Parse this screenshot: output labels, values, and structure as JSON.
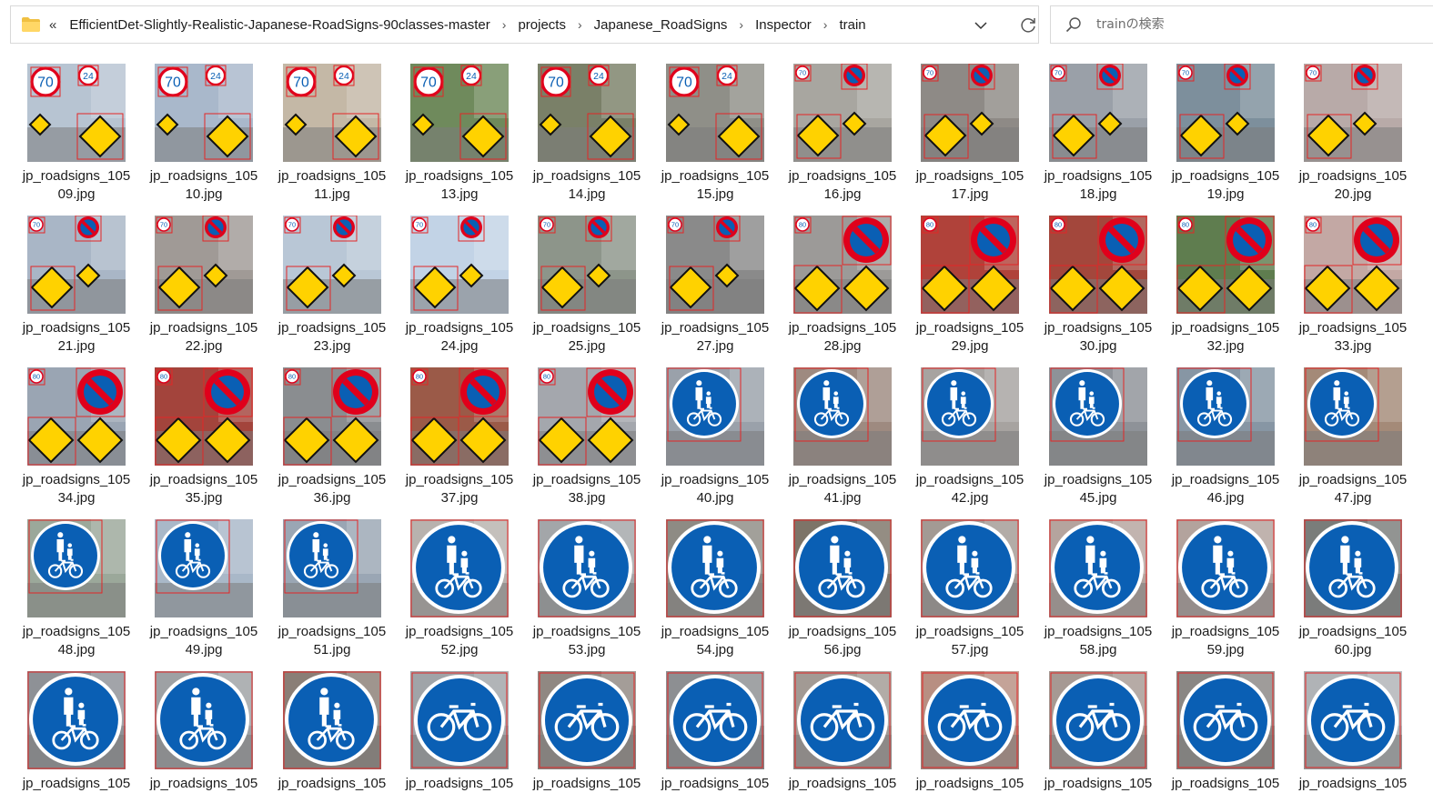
{
  "address_bar": {
    "overflow_symbol": "«",
    "breadcrumbs": [
      "EfficientDet-Slightly-Realistic-Japanese-RoadSigns-90classes-master",
      "projects",
      "Japanese_RoadSigns",
      "Inspector",
      "train"
    ]
  },
  "search": {
    "placeholder": "trainの検索"
  },
  "colors": {
    "sign_blue": "#0a5fb4",
    "sign_red": "#e0001b",
    "sign_yellow": "#ffd200",
    "bbox": "#e32626"
  },
  "files": [
    {
      "line1": "jp_roadsigns_105",
      "line2": "09.jpg",
      "thumb": "speed-deer-icon",
      "bg": "#b7c4d2"
    },
    {
      "line1": "jp_roadsigns_105",
      "line2": "10.jpg",
      "thumb": "speed-deer-icon",
      "bg": "#a9b8cb"
    },
    {
      "line1": "jp_roadsigns_105",
      "line2": "11.jpg",
      "thumb": "speed-deer-icon",
      "bg": "#c4b8a6"
    },
    {
      "line1": "jp_roadsigns_105",
      "line2": "13.jpg",
      "thumb": "speed-deer-icon",
      "bg": "#6f8a5c"
    },
    {
      "line1": "jp_roadsigns_105",
      "line2": "14.jpg",
      "thumb": "speed-deer-icon",
      "bg": "#7a8068"
    },
    {
      "line1": "jp_roadsigns_105",
      "line2": "15.jpg",
      "thumb": "speed-deer-icon",
      "bg": "#8f8f88"
    },
    {
      "line1": "jp_roadsigns_105",
      "line2": "16.jpg",
      "thumb": "school-y-icon",
      "bg": "#a8a6a0"
    },
    {
      "line1": "jp_roadsigns_105",
      "line2": "17.jpg",
      "thumb": "school-y-icon",
      "bg": "#8e8a86"
    },
    {
      "line1": "jp_roadsigns_105",
      "line2": "18.jpg",
      "thumb": "school-y-icon",
      "bg": "#9aa0a8"
    },
    {
      "line1": "jp_roadsigns_105",
      "line2": "19.jpg",
      "thumb": "school-y-icon",
      "bg": "#7d8f9c"
    },
    {
      "line1": "jp_roadsigns_105",
      "line2": "20.jpg",
      "thumb": "school-y-icon",
      "bg": "#b8aaa8"
    },
    {
      "line1": "jp_roadsigns_105",
      "line2": "21.jpg",
      "thumb": "school-y-icon",
      "bg": "#a9b6c6"
    },
    {
      "line1": "jp_roadsigns_105",
      "line2": "22.jpg",
      "thumb": "school-y-icon",
      "bg": "#a09a96"
    },
    {
      "line1": "jp_roadsigns_105",
      "line2": "23.jpg",
      "thumb": "school-y-icon",
      "bg": "#b9c7d6"
    },
    {
      "line1": "jp_roadsigns_105",
      "line2": "24.jpg",
      "thumb": "school-y-icon",
      "bg": "#c2d3e6"
    },
    {
      "line1": "jp_roadsigns_105",
      "line2": "25.jpg",
      "thumb": "school-y-icon",
      "bg": "#8d958a"
    },
    {
      "line1": "jp_roadsigns_105",
      "line2": "27.jpg",
      "thumb": "school-y-icon",
      "bg": "#8a8a8a"
    },
    {
      "line1": "jp_roadsigns_105",
      "line2": "28.jpg",
      "thumb": "curve-y-icon",
      "bg": "#9c9a98"
    },
    {
      "line1": "jp_roadsigns_105",
      "line2": "29.jpg",
      "thumb": "curve-y-icon",
      "bg": "#b0423a"
    },
    {
      "line1": "jp_roadsigns_105",
      "line2": "30.jpg",
      "thumb": "curve-y-icon",
      "bg": "#a3473c"
    },
    {
      "line1": "jp_roadsigns_105",
      "line2": "32.jpg",
      "thumb": "curve-y-icon",
      "bg": "#5f7d4f"
    },
    {
      "line1": "jp_roadsigns_105",
      "line2": "33.jpg",
      "thumb": "curve-y-icon",
      "bg": "#c3a8a4"
    },
    {
      "line1": "jp_roadsigns_105",
      "line2": "34.jpg",
      "thumb": "curve-y-icon",
      "bg": "#9aa5b3"
    },
    {
      "line1": "jp_roadsigns_105",
      "line2": "35.jpg",
      "thumb": "curve-y-icon",
      "bg": "#a3443c"
    },
    {
      "line1": "jp_roadsigns_105",
      "line2": "36.jpg",
      "thumb": "curve-y-icon",
      "bg": "#8a8d90"
    },
    {
      "line1": "jp_roadsigns_105",
      "line2": "37.jpg",
      "thumb": "curve-y-icon",
      "bg": "#9b5a48"
    },
    {
      "line1": "jp_roadsigns_105",
      "line2": "38.jpg",
      "thumb": "curve-y-icon",
      "bg": "#a4a7ad"
    },
    {
      "line1": "jp_roadsigns_105",
      "line2": "40.jpg",
      "thumb": "pedbike-small-icon",
      "bg": "#9aa1aa"
    },
    {
      "line1": "jp_roadsigns_105",
      "line2": "41.jpg",
      "thumb": "pedbike-small-icon",
      "bg": "#9e8a80"
    },
    {
      "line1": "jp_roadsigns_105",
      "line2": "42.jpg",
      "thumb": "pedbike-small-icon",
      "bg": "#a7a3a0"
    },
    {
      "line1": "jp_roadsigns_105",
      "line2": "45.jpg",
      "thumb": "pedbike-small-icon",
      "bg": "#8e9298"
    },
    {
      "line1": "jp_roadsigns_105",
      "line2": "46.jpg",
      "thumb": "pedbike-small-icon",
      "bg": "#8796a4"
    },
    {
      "line1": "jp_roadsigns_105",
      "line2": "47.jpg",
      "thumb": "pedbike-small-icon",
      "bg": "#a48a78"
    },
    {
      "line1": "jp_roadsigns_105",
      "line2": "48.jpg",
      "thumb": "pedbike-small-icon",
      "bg": "#9ba89a"
    },
    {
      "line1": "jp_roadsigns_105",
      "line2": "49.jpg",
      "thumb": "pedbike-small-icon",
      "bg": "#a9b8c8"
    },
    {
      "line1": "jp_roadsigns_105",
      "line2": "51.jpg",
      "thumb": "pedbike-small-icon",
      "bg": "#9aa6b4"
    },
    {
      "line1": "jp_roadsigns_105",
      "line2": "52.jpg",
      "thumb": "pedbike-large-icon",
      "bg": "#b8b2ae"
    },
    {
      "line1": "jp_roadsigns_105",
      "line2": "53.jpg",
      "thumb": "pedbike-large-icon",
      "bg": "#a3a6a9"
    },
    {
      "line1": "jp_roadsigns_105",
      "line2": "54.jpg",
      "thumb": "pedbike-large-icon",
      "bg": "#8e8b84"
    },
    {
      "line1": "jp_roadsigns_105",
      "line2": "56.jpg",
      "thumb": "pedbike-large-icon",
      "bg": "#7d7468"
    },
    {
      "line1": "jp_roadsigns_105",
      "line2": "57.jpg",
      "thumb": "pedbike-large-icon",
      "bg": "#a39a94"
    },
    {
      "line1": "jp_roadsigns_105",
      "line2": "58.jpg",
      "thumb": "pedbike-large-icon",
      "bg": "#b5a49e"
    },
    {
      "line1": "jp_roadsigns_105",
      "line2": "59.jpg",
      "thumb": "pedbike-large-icon",
      "bg": "#b3a39d"
    },
    {
      "line1": "jp_roadsigns_105",
      "line2": "60.jpg",
      "thumb": "pedbike-large-icon",
      "bg": "#7a7d7a"
    },
    {
      "line1": "jp_roadsigns_105",
      "line2": "",
      "thumb": "pedbike-large-icon",
      "bg": "#8e9196"
    },
    {
      "line1": "jp_roadsigns_105",
      "line2": "",
      "thumb": "pedbike-large-icon",
      "bg": "#9ea1a4"
    },
    {
      "line1": "jp_roadsigns_105",
      "line2": "",
      "thumb": "pedbike-large-icon",
      "bg": "#8a7e76"
    },
    {
      "line1": "jp_roadsigns_105",
      "line2": "",
      "thumb": "bicycle-icon",
      "bg": "#a0a4a8"
    },
    {
      "line1": "jp_roadsigns_105",
      "line2": "",
      "thumb": "bicycle-icon",
      "bg": "#908882"
    },
    {
      "line1": "jp_roadsigns_105",
      "line2": "",
      "thumb": "bicycle-icon",
      "bg": "#8d8f92"
    },
    {
      "line1": "jp_roadsigns_105",
      "line2": "",
      "thumb": "bicycle-icon",
      "bg": "#a29a94"
    },
    {
      "line1": "jp_roadsigns_105",
      "line2": "",
      "thumb": "bicycle-icon",
      "bg": "#b88f82"
    },
    {
      "line1": "jp_roadsigns_105",
      "line2": "",
      "thumb": "bicycle-icon",
      "bg": "#a69993"
    },
    {
      "line1": "jp_roadsigns_105",
      "line2": "",
      "thumb": "bicycle-icon",
      "bg": "#8a8784"
    },
    {
      "line1": "jp_roadsigns_105",
      "line2": "",
      "thumb": "bicycle-icon",
      "bg": "#b0b3b6"
    }
  ]
}
